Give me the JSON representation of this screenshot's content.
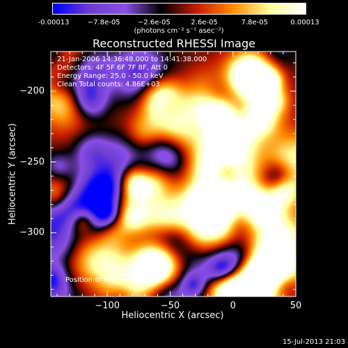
{
  "chart_data": {
    "type": "heatmap",
    "title": "Reconstructed RHESSI Image",
    "xlabel": "Heliocentric X (arcsec)",
    "ylabel": "Heliocentric Y (arcsec)",
    "xlim": [
      -145,
      50
    ],
    "ylim": [
      -345,
      -172
    ],
    "x_ticks": [
      -100,
      -50,
      0,
      50
    ],
    "y_ticks": [
      -200,
      -250,
      -300
    ],
    "x_tick_labels": [
      "−100",
      "−50",
      "0",
      "50"
    ],
    "y_tick_labels": [
      "−200",
      "−250",
      "−300"
    ],
    "colorbar": {
      "ticks": [
        "-0.00013",
        "−7.8e-05",
        "−2.6e-05",
        "2.6e-05",
        "7.8e-05",
        "0.00013"
      ],
      "unit_label": "(photons cm⁻² s⁻¹ asec⁻²)",
      "range": [
        -0.00013,
        0.00013
      ],
      "colors": [
        "#0000ff",
        "#6e3cd2",
        "#8a50e6",
        "#000000",
        "#c81e00",
        "#ff8c00",
        "#ffff9a",
        "#ffffff"
      ]
    },
    "annotations": [
      "21-Jan-2006 14:36:48.000 to 14:41:38.000",
      "Detectors: 4F 5F 6F 7F 8F, Att 0",
      "Energy Range: 25.0 - 50.0 keV",
      "Clean    Total counts: 4.86E+03"
    ],
    "peak_label": "Position of Peak = [18,-322]"
  },
  "timestamp": "15-Jul-2013 21:03"
}
